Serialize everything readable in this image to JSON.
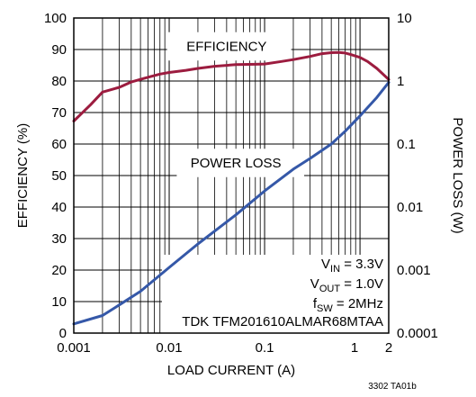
{
  "chart_data": {
    "type": "line",
    "title": "",
    "xlabel": "LOAD CURRENT (A)",
    "ylabel": "EFFICIENCY (%)",
    "y2label": "POWER LOSS (W)",
    "x_scale": "log",
    "xlim": [
      0.001,
      2
    ],
    "ylim": [
      0,
      100
    ],
    "y2lim": [
      0.0001,
      10
    ],
    "y2_scale": "log",
    "x_ticks": [
      "0.001",
      "0.01",
      "0.1",
      "1",
      "2"
    ],
    "y_ticks": [
      "0",
      "10",
      "20",
      "30",
      "40",
      "50",
      "60",
      "70",
      "80",
      "90",
      "100"
    ],
    "y2_ticks": [
      "0.0001",
      "0.001",
      "0.01",
      "0.1",
      "1",
      "10"
    ],
    "grid": true,
    "colors": {
      "efficiency": "#9c1c3f",
      "power_loss": "#3558a8"
    },
    "series": [
      {
        "name": "EFFICIENCY",
        "axis": "left",
        "x": [
          0.001,
          0.0015,
          0.002,
          0.003,
          0.004,
          0.006,
          0.008,
          0.01,
          0.015,
          0.02,
          0.03,
          0.05,
          0.08,
          0.1,
          0.15,
          0.2,
          0.3,
          0.4,
          0.5,
          0.6,
          0.7,
          0.8,
          1.0,
          1.2,
          1.5,
          2.0
        ],
        "y": [
          67.3,
          72.5,
          76.5,
          78.0,
          79.7,
          81.2,
          82.2,
          82.7,
          83.4,
          84.0,
          84.7,
          85.2,
          85.3,
          85.4,
          86.2,
          86.8,
          87.8,
          88.7,
          89.0,
          89.1,
          88.9,
          88.4,
          87.5,
          86.2,
          84.0,
          80.5
        ]
      },
      {
        "name": "POWER LOSS",
        "axis": "right",
        "x": [
          0.001,
          0.002,
          0.003,
          0.005,
          0.01,
          0.02,
          0.05,
          0.1,
          0.2,
          0.3,
          0.5,
          0.7,
          1.0,
          1.5,
          2.0
        ],
        "y": [
          0.00014,
          0.00019,
          0.00028,
          0.00046,
          0.0011,
          0.0026,
          0.0075,
          0.018,
          0.04,
          0.059,
          0.1,
          0.16,
          0.28,
          0.55,
          0.95
        ]
      }
    ],
    "annotations": [
      {
        "text": "EFFICIENCY",
        "at_x": 0.04,
        "at_y": 91
      },
      {
        "text": "POWER LOSS",
        "at_x": 0.05,
        "at_y": 54
      }
    ],
    "info_lines": [
      {
        "main": "V",
        "sub": "IN",
        "rest": " = 3.3V"
      },
      {
        "main": "V",
        "sub": "OUT",
        "rest": " = 1.0V"
      },
      {
        "main": "f",
        "sub": "SW",
        "rest": " = 2MHz"
      },
      {
        "main": "TDK TFM201610ALMAR68MTAA",
        "sub": "",
        "rest": ""
      }
    ],
    "figure_id": "3302 TA01b"
  }
}
